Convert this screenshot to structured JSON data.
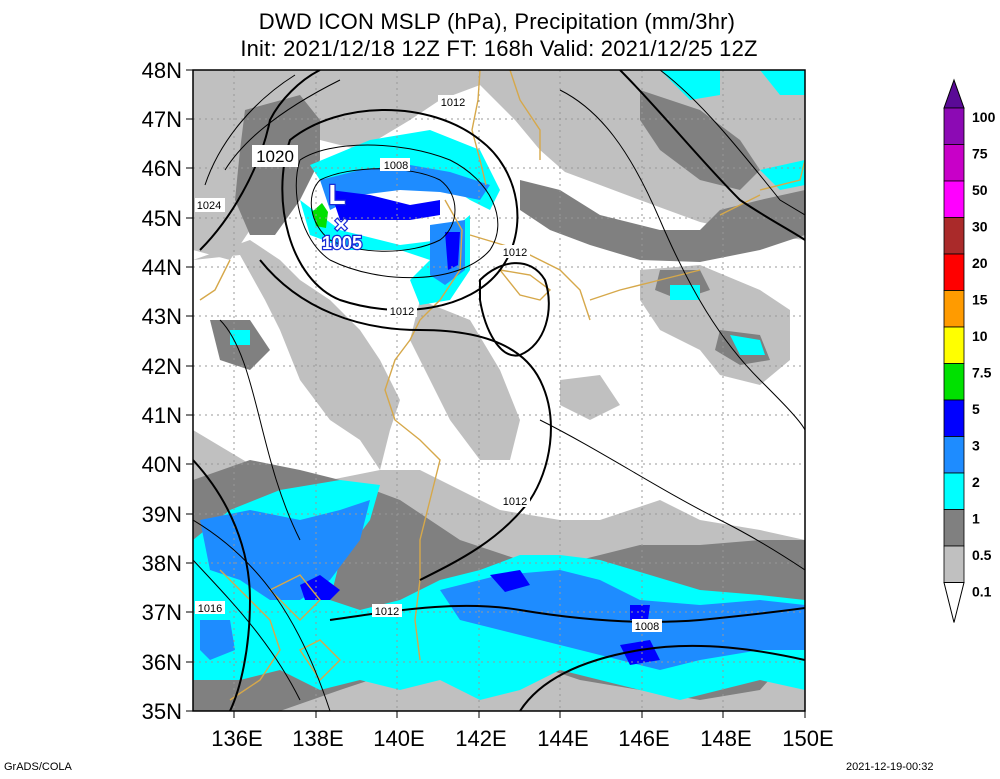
{
  "title_line1": "DWD ICON MSLP (hPa), Precipitation (mm/3hr)",
  "title_line2": "Init: 2021/12/18 12Z  FT: 168h  Valid: 2021/12/25 12Z",
  "footer_left": "GrADS/COLA",
  "footer_right": "2021-12-19-00:32",
  "low_center": {
    "symbol": "L",
    "pressure": "1005"
  },
  "map": {
    "lon_range": [
      135,
      150
    ],
    "lat_range": [
      35,
      48
    ],
    "lat_labels": [
      "48N",
      "47N",
      "46N",
      "45N",
      "44N",
      "43N",
      "42N",
      "41N",
      "40N",
      "39N",
      "38N",
      "37N",
      "36N",
      "35N"
    ],
    "lon_labels": [
      "136E",
      "138E",
      "140E",
      "142E",
      "144E",
      "146E",
      "148E",
      "150E"
    ]
  },
  "isobar_labels": [
    "1020",
    "1024",
    "1012",
    "1008",
    "1012",
    "1012",
    "1012",
    "1016",
    "1012",
    "1008"
  ],
  "colorbar": {
    "levels": [
      "100",
      "75",
      "50",
      "30",
      "20",
      "15",
      "10",
      "7.5",
      "5",
      "3",
      "2",
      "1",
      "0.5",
      "0.1"
    ],
    "colors": [
      "#5a0a96",
      "#8c0ab4",
      "#c800c8",
      "#ff00ff",
      "#aa2a2a",
      "#ff0000",
      "#ff9b00",
      "#ffff00",
      "#00e100",
      "#0000ff",
      "#1e8cff",
      "#00ffff",
      "#808080",
      "#c0c0c0"
    ]
  }
}
